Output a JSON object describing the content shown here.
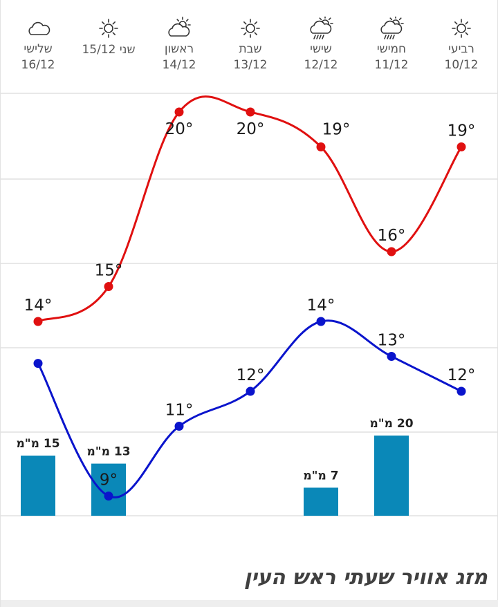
{
  "days": [
    {
      "name": "רביעי",
      "date": "10/12",
      "icon": "sun-icon"
    },
    {
      "name": "חמישי",
      "date": "11/12",
      "icon": "sun-cloud-rain-icon"
    },
    {
      "name": "שישי",
      "date": "12/12",
      "icon": "sun-cloud-rain-icon"
    },
    {
      "name": "שבת",
      "date": "13/12",
      "icon": "sun-icon"
    },
    {
      "name": "ראשון",
      "date": "14/12",
      "icon": "sun-cloud-icon"
    },
    {
      "name": "שני",
      "date": "15/12",
      "icon": "sun-icon"
    },
    {
      "name": "שלישי",
      "date": "16/12",
      "icon": "cloud-icon"
    }
  ],
  "chart_data": {
    "type": "line",
    "categories": [
      "10/12",
      "11/12",
      "12/12",
      "13/12",
      "14/12",
      "15/12",
      "16/12"
    ],
    "series": [
      {
        "values": [
          19,
          16,
          19,
          20,
          20,
          15,
          14
        ],
        "color": "#e01010"
      },
      {
        "values": [
          12,
          13,
          14,
          12,
          11,
          9,
          12.8
        ],
        "color": "#0a14cc"
      }
    ],
    "value_labels": {
      "high": [
        "19°",
        "16°",
        "19°",
        "20°",
        "20°",
        "15°",
        "14°"
      ],
      "low": [
        "12°",
        "13°",
        "14°",
        "12°",
        "11°",
        "9°",
        ""
      ]
    },
    "rain": {
      "values": [
        null,
        20,
        7,
        null,
        null,
        13,
        15
      ],
      "labels": [
        "",
        "20 מ\"מ",
        "7 מ\"מ",
        "",
        "",
        "13 מ\"מ",
        "15 מ\"מ"
      ],
      "color": "#0a88b8"
    },
    "grid": true,
    "gridline_color": "#e0e0e0"
  },
  "footer": {
    "title": "מזג אוויר שעתי ראש העין"
  }
}
